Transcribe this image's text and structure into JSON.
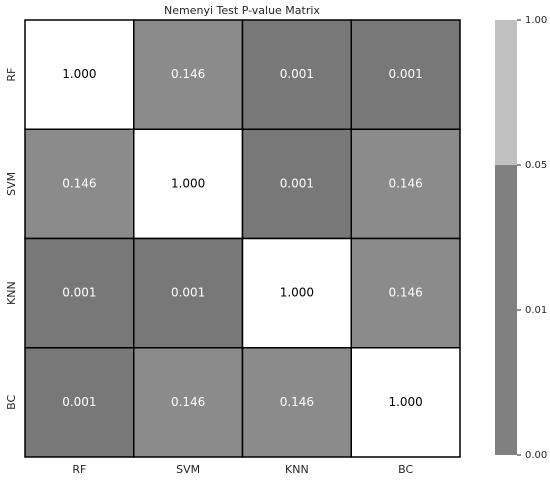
{
  "chart_data": {
    "type": "heatmap",
    "title": "Nemenyi Test P-value Matrix",
    "x_categories": [
      "RF",
      "SVM",
      "KNN",
      "BC"
    ],
    "y_categories": [
      "RF",
      "SVM",
      "KNN",
      "BC"
    ],
    "values": [
      [
        1,
        0.146,
        0.001,
        0.001
      ],
      [
        0.146,
        1,
        0.001,
        0.146
      ],
      [
        0.001,
        0.001,
        1,
        0.146
      ],
      [
        0.001,
        0.146,
        0.146,
        1
      ]
    ],
    "value_labels": [
      [
        "1.000",
        "0.146",
        "0.001",
        "0.001"
      ],
      [
        "0.146",
        "1.000",
        "0.001",
        "0.146"
      ],
      [
        "0.001",
        "0.001",
        "1.000",
        "0.146"
      ],
      [
        "0.001",
        "0.146",
        "0.146",
        "1.000"
      ]
    ],
    "colors": [
      [
        "#ffffff",
        "#8b8b8b",
        "#787878",
        "#787878"
      ],
      [
        "#8b8b8b",
        "#ffffff",
        "#787878",
        "#8b8b8b"
      ],
      [
        "#787878",
        "#787878",
        "#ffffff",
        "#8b8b8b"
      ],
      [
        "#787878",
        "#8b8b8b",
        "#8b8b8b",
        "#ffffff"
      ]
    ],
    "colorbar": {
      "ticks": [
        {
          "value": 0,
          "label": "0.00"
        },
        {
          "value": 0.01,
          "label": "0.01"
        },
        {
          "value": 0.05,
          "label": "0.05"
        },
        {
          "value": 1,
          "label": "1.00"
        }
      ],
      "colors": [
        "#808080",
        "#808080",
        "#c0c0c0"
      ]
    }
  }
}
